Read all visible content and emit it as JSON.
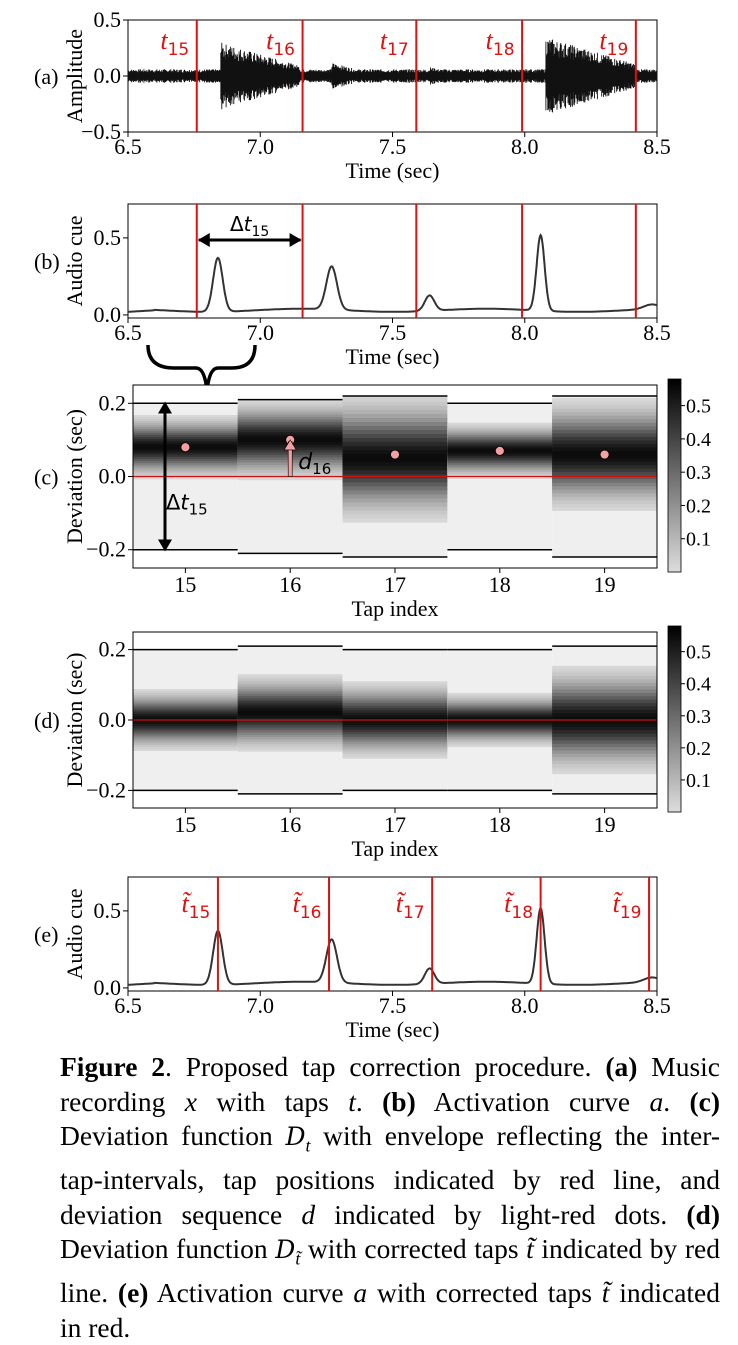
{
  "colors": {
    "tap_red": "#e01010",
    "curve": "#333333",
    "dot_fill": "#f4a0a0",
    "thin_red": "#d01010"
  },
  "panels": {
    "a": {
      "tag": "(a)",
      "ylabel": "Amplitude",
      "xlabel": "Time (sec)",
      "yticks": [
        "0.5",
        "0.0",
        "−0.5"
      ],
      "xticks": [
        "6.5",
        "7.0",
        "7.5",
        "8.0",
        "8.5"
      ],
      "tap_labels": [
        "15",
        "16",
        "17",
        "18",
        "19"
      ]
    },
    "b": {
      "tag": "(b)",
      "ylabel": "Audio cue",
      "xlabel": "Time (sec)",
      "yticks": [
        "0.5",
        "0.0"
      ],
      "xticks": [
        "6.5",
        "7.0",
        "7.5",
        "8.0",
        "8.5"
      ],
      "interval_sub": "15"
    },
    "c": {
      "tag": "(c)",
      "ylabel": "Deviation (sec)",
      "xlabel": "Tap index",
      "yticks": [
        "0.2",
        "0.0",
        "−0.2"
      ],
      "xticks": [
        "15",
        "16",
        "17",
        "18",
        "19"
      ],
      "cbar_ticks": [
        "0.5",
        "0.4",
        "0.3",
        "0.2",
        "0.1"
      ],
      "dev_sub": "16",
      "interval_sub": "15"
    },
    "d": {
      "tag": "(d)",
      "ylabel": "Deviation (sec)",
      "xlabel": "Tap index",
      "yticks": [
        "0.2",
        "0.0",
        "−0.2"
      ],
      "xticks": [
        "15",
        "16",
        "17",
        "18",
        "19"
      ],
      "cbar_ticks": [
        "0.5",
        "0.4",
        "0.3",
        "0.2",
        "0.1"
      ]
    },
    "e": {
      "tag": "(e)",
      "ylabel": "Audio cue",
      "xlabel": "Time (sec)",
      "yticks": [
        "0.5",
        "0.0"
      ],
      "xticks": [
        "6.5",
        "7.0",
        "7.5",
        "8.0",
        "8.5"
      ],
      "tap_labels": [
        "15",
        "16",
        "17",
        "18",
        "19"
      ]
    }
  },
  "taps": [
    6.76,
    7.16,
    7.59,
    7.99,
    8.42
  ],
  "corrected_taps": [
    6.84,
    7.26,
    7.65,
    8.06,
    8.47
  ],
  "activation_peaks": [
    {
      "t": 6.84,
      "h": 0.35,
      "w": 0.018
    },
    {
      "t": 7.27,
      "h": 0.28,
      "w": 0.02
    },
    {
      "t": 7.64,
      "h": 0.1,
      "w": 0.018
    },
    {
      "t": 8.06,
      "h": 0.49,
      "w": 0.015
    },
    {
      "t": 8.48,
      "h": 0.03,
      "w": 0.03
    }
  ],
  "deviation_c": [
    {
      "tap": 15,
      "env": 0.2,
      "center": 0.08,
      "spread": 0.04,
      "dev": 0.08
    },
    {
      "tap": 16,
      "env": 0.21,
      "center": 0.1,
      "spread": 0.05,
      "dev": 0.1
    },
    {
      "tap": 17,
      "env": 0.22,
      "center": 0.05,
      "spread": 0.08,
      "dev": 0.06
    },
    {
      "tap": 18,
      "env": 0.2,
      "center": 0.07,
      "spread": 0.035,
      "dev": 0.07
    },
    {
      "tap": 19,
      "env": 0.22,
      "center": 0.06,
      "spread": 0.07,
      "dev": 0.06
    }
  ],
  "deviation_d": [
    {
      "tap": 15,
      "env": 0.2,
      "center": 0.0,
      "spread": 0.04
    },
    {
      "tap": 16,
      "env": 0.21,
      "center": 0.02,
      "spread": 0.05
    },
    {
      "tap": 17,
      "env": 0.2,
      "center": 0.0,
      "spread": 0.05
    },
    {
      "tap": 18,
      "env": 0.2,
      "center": 0.0,
      "spread": 0.035
    },
    {
      "tap": 19,
      "env": 0.21,
      "center": 0.0,
      "spread": 0.07
    }
  ],
  "caption": {
    "fig_label": "Figure 2",
    "text1": ". Proposed tap correction procedure. ",
    "a_label": "(a)",
    "a_text1": " Music recording ",
    "x_var": "x",
    "a_text2": " with taps ",
    "t_var": "t",
    "a_text3": ". ",
    "b_label": "(b)",
    "b_text1": " Activation curve ",
    "a_var": "a",
    "b_text2": ". ",
    "c_label": "(c)",
    "c_text1": " Deviation function ",
    "D_sym": "D",
    "t_sub": "t",
    "c_text2": " with envelope reflecting the inter-tap-intervals, tap positions indicated by red line, and deviation sequence ",
    "d_var": "d",
    "c_text3": " indicated by light-red dots. ",
    "d_label": "(d)",
    "d_text1": " Deviation function ",
    "d_text2": " with corrected taps ",
    "tt_var": "t̃",
    "d_text3": " indicated by red line. ",
    "e_label": "(e)",
    "e_text1": " Activation curve ",
    "e_text2": " with corrected taps ",
    "e_text3": " indicated in red."
  }
}
